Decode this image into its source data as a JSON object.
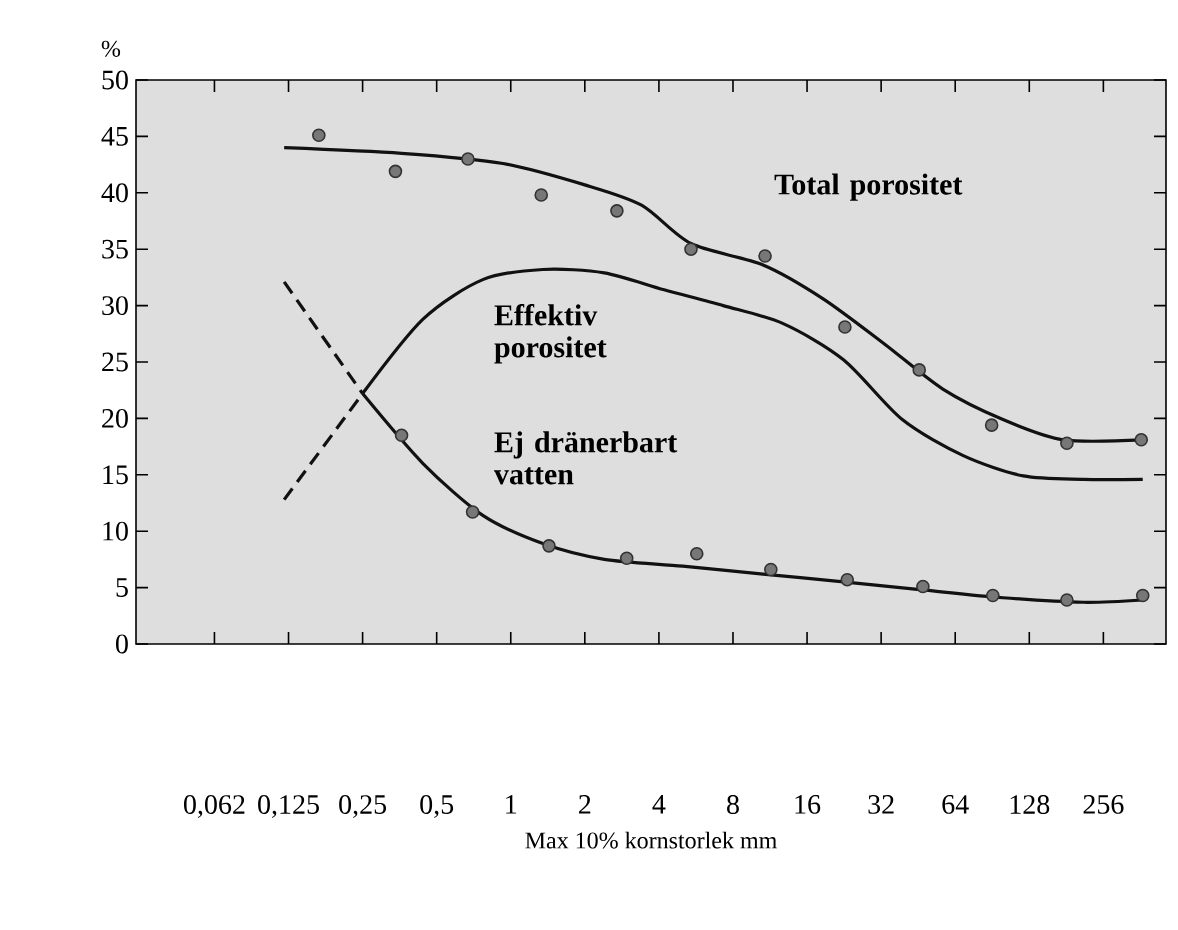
{
  "chart_data": {
    "type": "line",
    "xlabel": "Max 10% kornstorlek mm",
    "ylabel": "%",
    "log": "x",
    "xlim": [
      0.03,
      460
    ],
    "ylim": [
      0,
      50
    ],
    "xticks": [
      {
        "value": 0.0625,
        "label": "0,062"
      },
      {
        "value": 0.125,
        "label": "0,125"
      },
      {
        "value": 0.25,
        "label": "0,25"
      },
      {
        "value": 0.5,
        "label": "0,5"
      },
      1,
      2,
      4,
      8,
      16,
      32,
      64,
      128,
      256
    ],
    "yticks": [
      0,
      5,
      10,
      15,
      20,
      25,
      30,
      35,
      40,
      45,
      50
    ],
    "grid": false,
    "legend": false,
    "series": [
      {
        "name": "Total porositet",
        "color": "#111111",
        "line_style": "solid",
        "x": [
          0.12,
          0.36,
          0.93,
          2.0,
          3.4,
          5.4,
          10.6,
          18.6,
          33,
          57,
          100,
          176,
          370
        ],
        "values": [
          44.0,
          43.5,
          42.6,
          40.7,
          38.9,
          35.5,
          33.6,
          30.6,
          26.6,
          22.6,
          19.9,
          18.1,
          18.1
        ]
      },
      {
        "name": "Effektiv porositet",
        "color": "#111111",
        "line_style": "solid",
        "x": [
          0.25,
          0.44,
          0.77,
          1.35,
          2.4,
          4.2,
          7.3,
          12.8,
          22.5,
          39,
          69,
          121,
          212,
          370
        ],
        "values": [
          22.2,
          28.8,
          32.3,
          33.2,
          32.9,
          31.4,
          30.0,
          28.4,
          25.2,
          19.9,
          16.7,
          14.9,
          14.6,
          14.6
        ]
      },
      {
        "color": "#111111",
        "line_style": "dashed",
        "x": [
          0.12,
          0.25
        ],
        "values": [
          12.8,
          22.2
        ]
      },
      {
        "name": "Ej dränerbart vatten",
        "color": "#111111",
        "line_style": "solid",
        "x": [
          0.25,
          0.44,
          0.77,
          1.35,
          2.4,
          5.0,
          10.6,
          22.5,
          47,
          100,
          212,
          370
        ],
        "values": [
          22.2,
          16.0,
          11.4,
          8.9,
          7.5,
          6.9,
          6.2,
          5.5,
          4.8,
          4.1,
          3.7,
          3.9
        ]
      },
      {
        "color": "#111111",
        "line_style": "dashed",
        "x": [
          0.12,
          0.25
        ],
        "values": [
          32.1,
          22.2
        ]
      },
      {
        "type": "scatter",
        "color": "#777777",
        "marker": "circle",
        "x": [
          0.166,
          0.34,
          0.67,
          1.33,
          2.7,
          5.4,
          10.8,
          22.8,
          45.7,
          90,
          182,
          365
        ],
        "values": [
          45.1,
          41.9,
          43.0,
          39.8,
          38.4,
          35.0,
          34.4,
          28.1,
          24.3,
          19.4,
          17.8,
          18.1
        ]
      },
      {
        "type": "scatter",
        "color": "#777777",
        "marker": "circle",
        "x": [
          0.36,
          0.7,
          1.43,
          2.96,
          5.7,
          11.4,
          23.3,
          47.3,
          91,
          182,
          370
        ],
        "values": [
          18.5,
          11.7,
          8.7,
          7.6,
          8.0,
          6.6,
          5.7,
          5.1,
          4.3,
          3.9,
          4.3
        ]
      }
    ]
  }
}
